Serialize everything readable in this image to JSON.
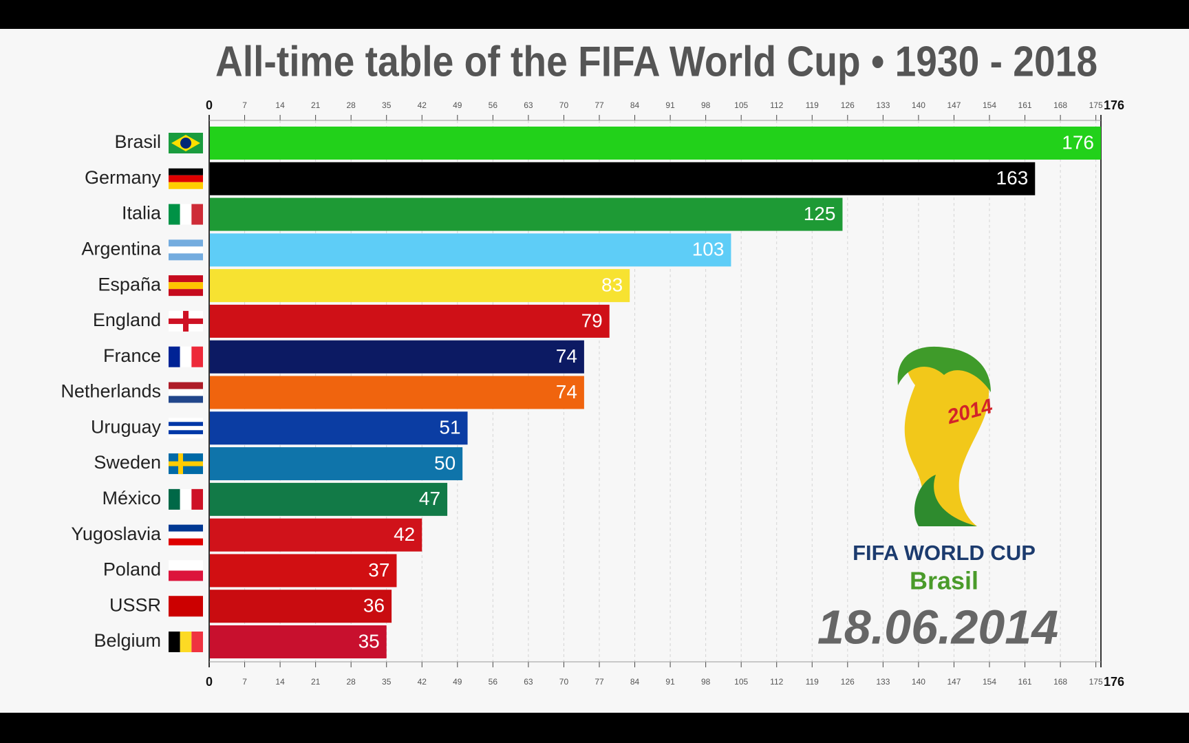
{
  "chart_data": {
    "type": "hbar",
    "title": "All-time table of the FIFA World Cup • 1930 - 2018",
    "categories": [
      "Brasil",
      "Germany",
      "Italia",
      "Argentina",
      "España",
      "England",
      "France",
      "Netherlands",
      "Uruguay",
      "Sweden",
      "México",
      "Yugoslavia",
      "Poland",
      "USSR",
      "Belgium"
    ],
    "values": [
      176,
      163,
      125,
      103,
      83,
      79,
      74,
      74,
      51,
      50,
      47,
      42,
      37,
      36,
      35
    ],
    "colors": [
      "#22d11a",
      "#000000",
      "#1e9a35",
      "#5ecdf7",
      "#f7e231",
      "#cf1017",
      "#0c1a63",
      "#f0640e",
      "#0b3da3",
      "#0f74aa",
      "#127a47",
      "#d0121a",
      "#d10f12",
      "#c90c10",
      "#c8102e"
    ],
    "xlim": [
      0,
      176
    ],
    "xticks": [
      0,
      7,
      14,
      21,
      28,
      35,
      42,
      49,
      56,
      63,
      70,
      77,
      84,
      91,
      98,
      105,
      112,
      119,
      126,
      133,
      140,
      147,
      154,
      161,
      168,
      175,
      176
    ],
    "grid": true,
    "annotations": {
      "logo_year": "2014",
      "logo_line1": "FIFA WORLD CUP",
      "logo_line2": "Brasil",
      "date": "18.06.2014"
    }
  }
}
